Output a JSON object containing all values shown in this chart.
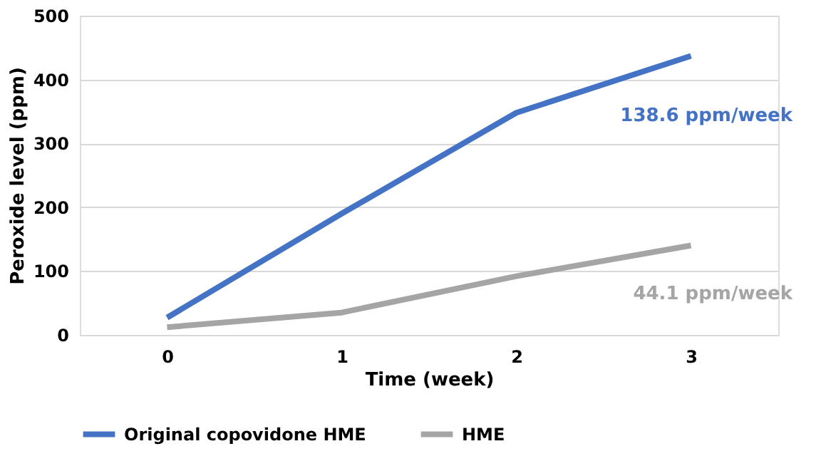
{
  "chart_data": {
    "type": "line",
    "xlabel": "Time (week)",
    "ylabel": "Peroxide level (ppm)",
    "categories": [
      "0",
      "1",
      "2",
      "3"
    ],
    "series": [
      {
        "name": "Original copovidone HME",
        "color": "#4472c4",
        "values": [
          27,
          190,
          348,
          437
        ]
      },
      {
        "name": "HME",
        "color": "#a5a5a5",
        "values": [
          12,
          35,
          92,
          140
        ]
      }
    ],
    "ylim": [
      0,
      500
    ],
    "yticks": [
      0,
      100,
      200,
      300,
      400,
      500
    ],
    "grid": "y",
    "legend": "bottom",
    "marker": "none",
    "line_style": "solid",
    "annotations": [
      "138.6 ppm/week",
      "44.1 ppm/week"
    ]
  }
}
